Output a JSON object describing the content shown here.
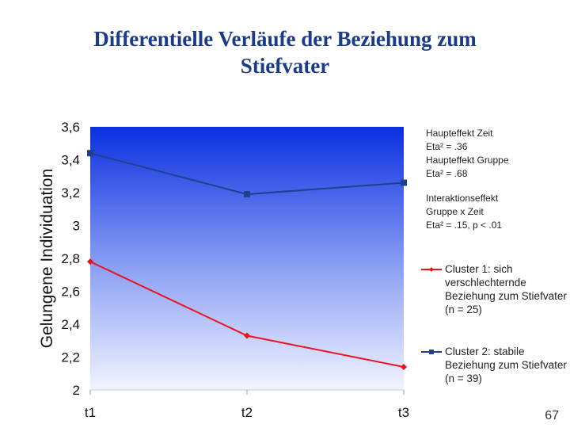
{
  "slide": {
    "title_line1": "Differentielle Verläufe der Beziehung zum",
    "title_line2": "Stiefvater",
    "page_number": "67"
  },
  "notes": {
    "line1": "Haupteffekt Zeit",
    "line2": "Eta² = .36",
    "line3": "Haupteffekt Gruppe",
    "line4": "Eta² = .68",
    "line5": "Interaktionseffekt",
    "line6": "Gruppe x Zeit",
    "line7": "Eta² = .15, p < .01"
  },
  "chart_data": {
    "type": "line",
    "categories": [
      "t1",
      "t2",
      "t3"
    ],
    "ylabel": "Gelungene Individuation",
    "ylim": [
      2,
      3.6
    ],
    "yticks": [
      2,
      2.2,
      2.4,
      2.6,
      2.8,
      3,
      3.2,
      3.4,
      3.6
    ],
    "ytick_labels": [
      "2",
      "2,2",
      "2,4",
      "2,6",
      "2,8",
      "3",
      "3,2",
      "3,4",
      "3,6"
    ],
    "grid": false,
    "legend_position": "right",
    "series": [
      {
        "name": "Cluster 1: sich verschlechternde Beziehung zum Stiefvater (n = 25)",
        "values": [
          2.78,
          2.33,
          2.14
        ],
        "color": "#e8141c",
        "marker": "diamond"
      },
      {
        "name": "Cluster 2: stabile Beziehung zum Stiefvater (n = 39)",
        "values": [
          3.44,
          3.19,
          3.26
        ],
        "color": "#1f3f8f",
        "marker": "square"
      }
    ]
  }
}
